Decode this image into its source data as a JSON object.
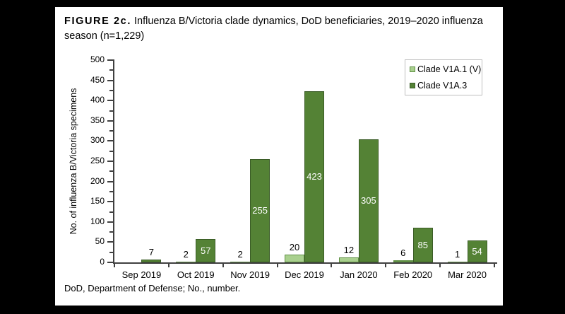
{
  "window": {
    "background": "#000000",
    "page_background": "#ffffff"
  },
  "figure": {
    "title_label": "FIGURE 2c.",
    "title_text": " Influenza B/Victoria clade dynamics, DoD beneficiaries, 2019–2020 influenza season (n=1,229)",
    "footnote": "DoD, Department of Defense; No., number."
  },
  "chart_data": {
    "type": "bar",
    "title": "FIGURE 2c. Influenza B/Victoria clade dynamics, DoD beneficiaries, 2019–2020 influenza season (n=1,229)",
    "categories": [
      "Sep 2019",
      "Oct 2019",
      "Nov 2019",
      "Dec 2019",
      "Jan 2020",
      "Feb 2020",
      "Mar 2020"
    ],
    "series": [
      {
        "name": "Clade V1A.1 (V)",
        "color": "#a9d08e",
        "border_color": "#5f8f44",
        "values": [
          0,
          2,
          2,
          20,
          12,
          6,
          1
        ]
      },
      {
        "name": "Clade V1A.3",
        "color": "#548235",
        "border_color": "#3a5c26",
        "values": [
          7,
          57,
          255,
          423,
          305,
          85,
          54
        ]
      }
    ],
    "xlabel": "",
    "ylabel": "No. of influenza B/Victoria specimens",
    "ylim": [
      0,
      500
    ],
    "ytick_step": 50,
    "ytick_minor_step": 25,
    "grid": false,
    "legend_position": "top-right",
    "data_labels": true,
    "value_label_inside_color": "#ffffff",
    "value_label_outside_color": "#000000",
    "axis_color": "#404040",
    "legend_border_color": "#bfbfbf"
  }
}
